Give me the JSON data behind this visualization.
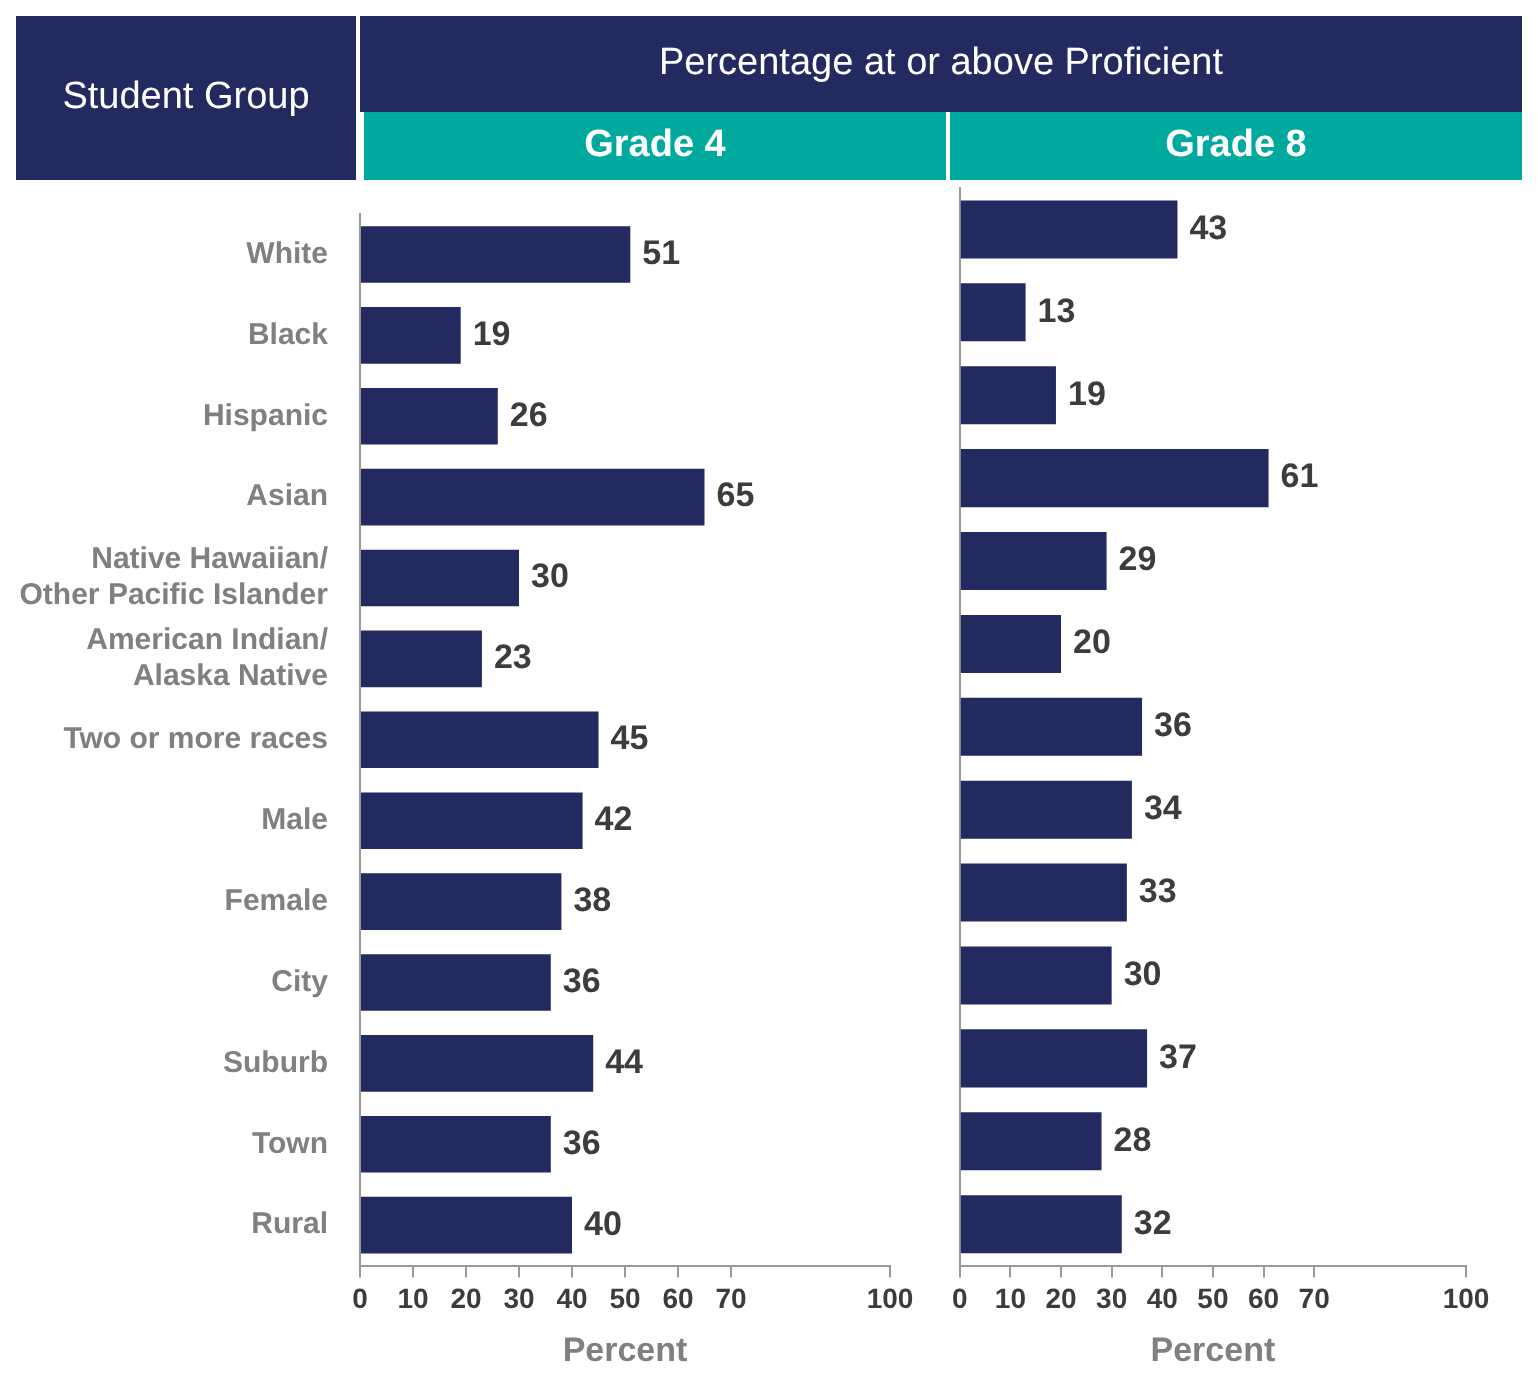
{
  "chart_data": [
    {
      "type": "other",
      "title": "Percentage at or above Proficient",
      "annotations": [
        "Student Group"
      ]
    },
    {
      "type": "bar",
      "orientation": "horizontal",
      "title": "Grade 4",
      "xlabel": "Percent",
      "categories": [
        "White",
        "Black",
        "Hispanic",
        "Asian",
        "Native Hawaiian/Other Pacific Islander",
        "American Indian/Alaska Native",
        "Two or more races",
        "Male",
        "Female",
        "City",
        "Suburb",
        "Town",
        "Rural"
      ],
      "values": [
        51,
        19,
        26,
        65,
        30,
        23,
        45,
        42,
        38,
        36,
        44,
        36,
        40
      ],
      "color": "#222a60",
      "xlim": [
        0,
        100
      ],
      "xticks": [
        0,
        10,
        20,
        30,
        40,
        50,
        60,
        70,
        100
      ],
      "data_labels": true
    },
    {
      "type": "bar",
      "orientation": "horizontal",
      "title": "Grade 8",
      "xlabel": "Percent",
      "categories": [
        null,
        null,
        null,
        null,
        null,
        null,
        null,
        null,
        null,
        null,
        null,
        null,
        null
      ],
      "values": [
        43,
        13,
        19,
        61,
        29,
        20,
        36,
        34,
        33,
        30,
        37,
        28,
        32
      ],
      "color": "#222a60",
      "xlim": [
        0,
        100
      ],
      "xticks": [
        0,
        10,
        20,
        30,
        40,
        50,
        60,
        70,
        100
      ],
      "data_labels": true,
      "tick_labels": "x"
    }
  ]
}
